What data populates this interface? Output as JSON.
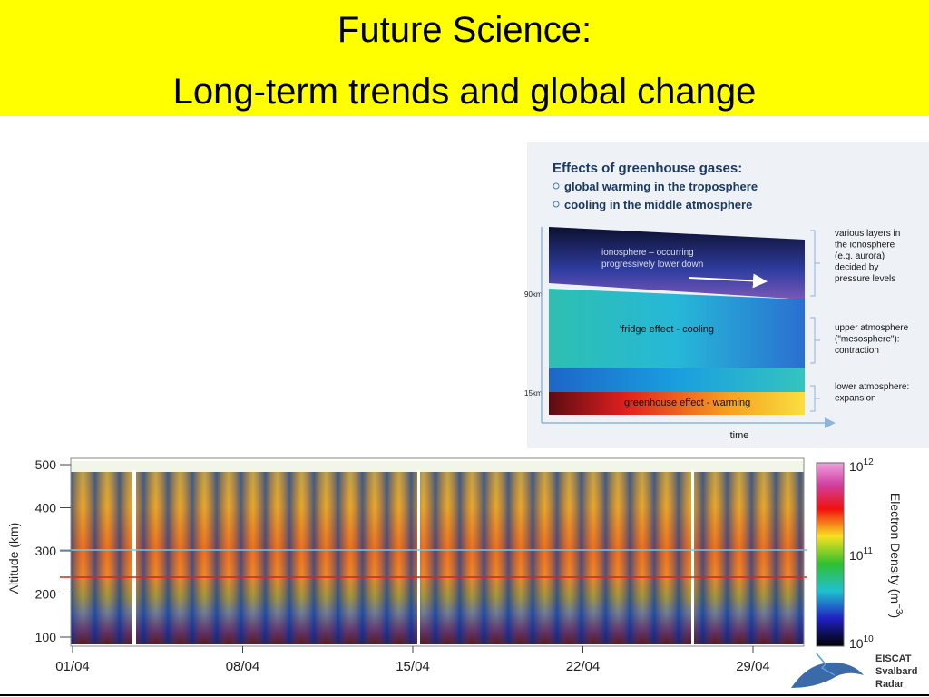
{
  "header": {
    "title_line1": "Future Science:",
    "title_line2": "Long-term trends and global change"
  },
  "diagram": {
    "title": "Effects of greenhouse gases:",
    "bullets": [
      "global warming in the troposphere",
      "cooling in the middle atmosphere"
    ],
    "layers": {
      "ionosphere": [
        "ionosphere – occurring",
        "progressively lower down"
      ],
      "mesosphere": "'fridge effect - cooling",
      "troposphere": "greenhouse effect - warming"
    },
    "altitudes": [
      "90km",
      "15km"
    ],
    "notes": [
      [
        "various layers in",
        "the ionosphere",
        "(e.g. aurora)",
        "decided by",
        "pressure levels"
      ],
      [
        "upper atmosphere",
        "(\"mesosphere\"):",
        "contraction"
      ],
      [
        "lower atmosphere:",
        "expansion"
      ]
    ],
    "x_axis": "time"
  },
  "plot": {
    "y_axis_label": "Altitude (km)",
    "y_ticks": [
      "500",
      "400",
      "300",
      "200",
      "100"
    ],
    "x_ticks": [
      "01/04",
      "08/04",
      "15/04",
      "22/04",
      "29/04"
    ],
    "colorbar_ticks": [
      {
        "base": "10",
        "exp": "12"
      },
      {
        "base": "10",
        "exp": "11"
      },
      {
        "base": "10",
        "exp": "10"
      }
    ],
    "colorbar_label": {
      "text": "Electron Density (m",
      "exp": "−3",
      "close": ")"
    }
  },
  "logo": [
    "EISCAT",
    "Svalbard",
    "Radar"
  ]
}
